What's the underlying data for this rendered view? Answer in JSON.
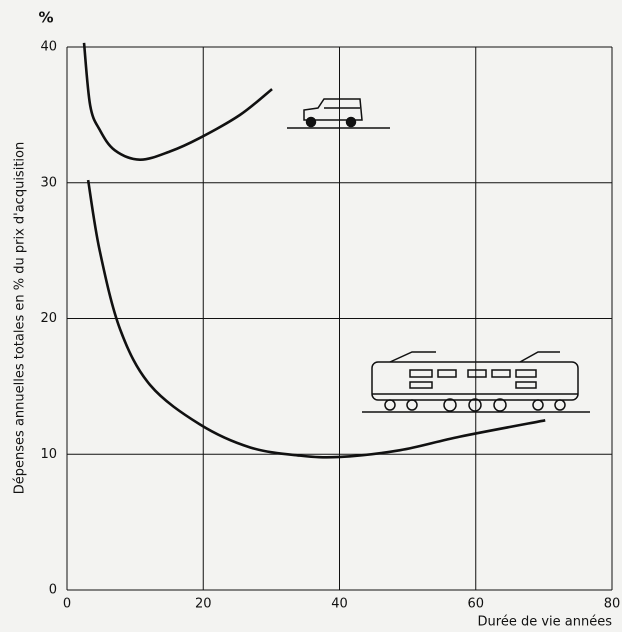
{
  "chart_data": {
    "type": "line",
    "y_unit": "%",
    "y_label": "Dépenses annuelles totales en % du prix d'acquisition",
    "x_label": "Durée de vie années",
    "xlim": [
      0,
      80
    ],
    "xticks": [
      0,
      20,
      40,
      60,
      80
    ],
    "ylim": [
      0,
      40
    ],
    "yticks": [
      0,
      10,
      20,
      30,
      40
    ],
    "grid": true,
    "series": [
      {
        "color": "#111111",
        "x": [
          2.5,
          3.4,
          4.8,
          7.0,
          10.7,
          15.1,
          19.5,
          25.4,
          30.1
        ],
        "values": [
          40.3,
          35.7,
          33.9,
          32.4,
          31.7,
          32.3,
          33.3,
          35.0,
          36.9
        ]
      },
      {
        "color": "#111111",
        "x": [
          3.1,
          4.8,
          7.8,
          12.2,
          19.5,
          26.9,
          34.2,
          40.1,
          48.9,
          57.7,
          70.2
        ],
        "values": [
          30.2,
          25.0,
          19.2,
          15.1,
          12.2,
          10.5,
          9.9,
          9.8,
          10.3,
          11.3,
          12.5
        ]
      }
    ]
  }
}
